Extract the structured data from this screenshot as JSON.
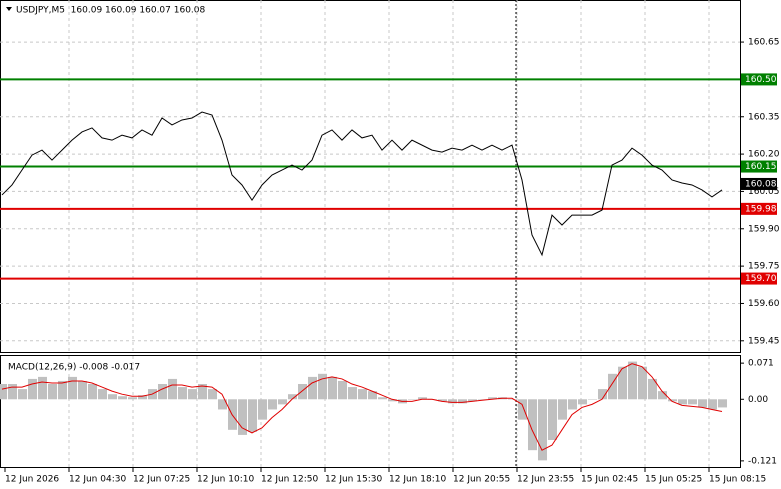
{
  "chart_data": [
    {
      "type": "line",
      "title": "USDJPY,M5  160.09 160.09 160.07 160.08",
      "color": "#000000",
      "values": [
        160.036,
        160.076,
        160.136,
        160.196,
        160.216,
        160.176,
        160.216,
        160.256,
        160.289,
        160.305,
        160.265,
        160.256,
        160.276,
        160.265,
        160.297,
        160.276,
        160.345,
        160.317,
        160.337,
        160.345,
        160.369,
        160.357,
        160.256,
        160.116,
        160.076,
        160.015,
        160.076,
        160.116,
        160.136,
        160.156,
        160.136,
        160.176,
        160.276,
        160.297,
        160.256,
        160.297,
        160.265,
        160.276,
        160.216,
        160.256,
        160.216,
        160.256,
        160.236,
        160.216,
        160.208,
        160.224,
        160.216,
        160.236,
        160.216,
        160.236,
        160.216,
        160.236,
        160.096,
        159.875,
        159.795,
        159.955,
        159.915,
        159.955,
        159.955,
        159.955,
        159.975,
        160.156,
        160.176,
        160.224,
        160.196,
        160.156,
        160.136,
        160.096,
        160.084,
        160.076,
        160.056,
        160.028,
        160.056
      ],
      "ylim": [
        159.405,
        160.819
      ],
      "yticks": [
        160.65,
        160.35,
        {
          "value": 160.2,
          "label": "160.20"
        },
        160.05,
        {
          "value": 159.9,
          "label": "159.90"
        },
        159.75,
        {
          "value": 159.6,
          "label": "159.60"
        },
        159.45
      ],
      "grid": true,
      "levels": [
        {
          "value": 160.5,
          "label": "160.50",
          "color": "#008000"
        },
        {
          "value": 160.15,
          "label": "160.15",
          "color": "#008000"
        },
        {
          "value": 159.98,
          "label": "159.98",
          "color": "#e00000"
        },
        {
          "value": 159.7,
          "label": "159.70",
          "color": "#e00000"
        }
      ],
      "current_price": {
        "value": 160.08,
        "label": "160.08"
      },
      "x_labels": [
        "12 Jun 2026",
        "12 Jun 04:30",
        "12 Jun 07:25",
        "12 Jun 10:10",
        "12 Jun 12:50",
        "12 Jun 15:30",
        "12 Jun 18:10",
        "12 Jun 20:55",
        "12 Jun 23:55",
        "15 Jun 02:45",
        "15 Jun 05:25",
        "15 Jun 08:15"
      ]
    },
    {
      "type": "macd",
      "title": "MACD(12,26,9) -0.008 -0.017",
      "histogram": {
        "color": "#c0c0c0",
        "values": [
          0.03,
          0.03,
          0.02,
          0.04,
          0.044,
          0.03,
          0.036,
          0.044,
          0.036,
          0.03,
          0.02,
          0.01,
          0.006,
          0.004,
          0.008,
          0.02,
          0.03,
          0.04,
          0.024,
          0.02,
          0.03,
          0.02,
          -0.02,
          -0.06,
          -0.07,
          -0.064,
          -0.04,
          -0.02,
          -0.01,
          0.01,
          0.03,
          0.044,
          0.05,
          0.044,
          0.036,
          0.024,
          0.02,
          0.016,
          0.004,
          -0.004,
          -0.008,
          0,
          0.004,
          0,
          -0.004,
          -0.008,
          -0.008,
          -0.004,
          0,
          0.004,
          0.004,
          0,
          -0.04,
          -0.1,
          -0.12,
          -0.08,
          -0.04,
          -0.02,
          -0.01,
          0,
          0.02,
          0.05,
          0.064,
          0.074,
          0.064,
          0.04,
          0.016,
          -0.004,
          -0.01,
          -0.01,
          -0.016,
          -0.02,
          -0.016
        ]
      },
      "signal": {
        "color": "#e00000",
        "values": [
          0.02,
          0.024,
          0.024,
          0.03,
          0.034,
          0.032,
          0.032,
          0.036,
          0.036,
          0.032,
          0.024,
          0.016,
          0.01,
          0.006,
          0.006,
          0.01,
          0.02,
          0.028,
          0.028,
          0.024,
          0.026,
          0.024,
          0.01,
          -0.03,
          -0.056,
          -0.066,
          -0.056,
          -0.036,
          -0.02,
          0,
          0.016,
          0.032,
          0.04,
          0.044,
          0.04,
          0.03,
          0.024,
          0.016,
          0.008,
          0,
          -0.004,
          -0.004,
          0,
          0,
          -0.004,
          -0.006,
          -0.006,
          -0.004,
          -0.002,
          0,
          0.002,
          0.002,
          -0.01,
          -0.06,
          -0.1,
          -0.09,
          -0.06,
          -0.03,
          -0.016,
          -0.01,
          0,
          0.03,
          0.06,
          0.07,
          0.064,
          0.044,
          0.016,
          -0.004,
          -0.012,
          -0.014,
          -0.016,
          -0.02,
          -0.024
        ]
      },
      "ylim": [
        -0.135,
        0.087
      ],
      "yticks": [
        0.071,
        {
          "value": 0,
          "label": "0.00"
        },
        -0.121
      ]
    }
  ]
}
